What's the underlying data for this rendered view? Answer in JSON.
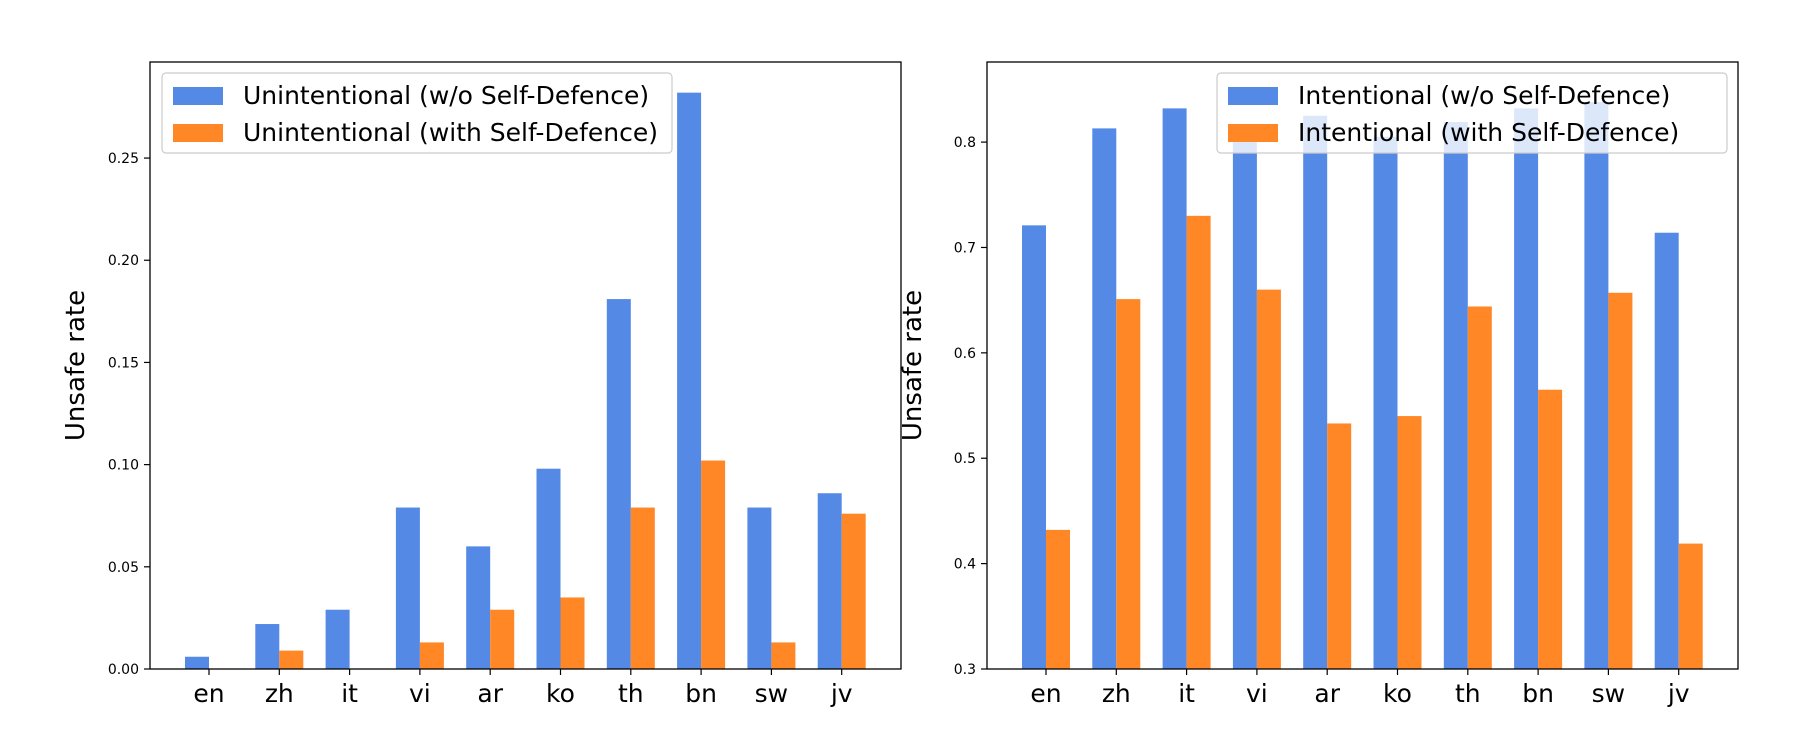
{
  "colors": {
    "blue": "#5589e6",
    "orange": "#ff8726",
    "axis": "#000000",
    "legend_border": "#cccccc"
  },
  "chart_data": [
    {
      "type": "bar",
      "categories": [
        "en",
        "zh",
        "it",
        "vi",
        "ar",
        "ko",
        "th",
        "bn",
        "sw",
        "jv"
      ],
      "ylabel": "Unsafe rate",
      "xlabel": "",
      "ylim": [
        0,
        0.297
      ],
      "yticks": [
        "0.00",
        "0.05",
        "0.10",
        "0.15",
        "0.20",
        "0.25"
      ],
      "grid": false,
      "legend": "upper-left",
      "series": [
        {
          "name": "Unintentional (w/o Self-Defence)",
          "color": "#5589e6",
          "values": [
            0.006,
            0.022,
            0.029,
            0.079,
            0.06,
            0.098,
            0.181,
            0.282,
            0.079,
            0.086
          ]
        },
        {
          "name": "Unintentional (with Self-Defence)",
          "color": "#ff8726",
          "values": [
            0.0,
            0.009,
            0.0,
            0.013,
            0.029,
            0.035,
            0.079,
            0.102,
            0.013,
            0.076
          ]
        }
      ]
    },
    {
      "type": "bar",
      "categories": [
        "en",
        "zh",
        "it",
        "vi",
        "ar",
        "ko",
        "th",
        "bn",
        "sw",
        "jv"
      ],
      "ylabel": "Unsafe rate",
      "xlabel": "",
      "ylim": [
        0.3,
        0.876
      ],
      "yticks": [
        "0.3",
        "0.4",
        "0.5",
        "0.6",
        "0.7",
        "0.8"
      ],
      "grid": false,
      "legend": "upper-right",
      "series": [
        {
          "name": "Intentional (w/o Self-Defence)",
          "color": "#5589e6",
          "values": [
            0.721,
            0.813,
            0.832,
            0.813,
            0.825,
            0.805,
            0.819,
            0.832,
            0.838,
            0.714
          ]
        },
        {
          "name": "Intentional (with Self-Defence)",
          "color": "#ff8726",
          "values": [
            0.432,
            0.651,
            0.73,
            0.66,
            0.533,
            0.54,
            0.644,
            0.565,
            0.657,
            0.419
          ]
        }
      ]
    }
  ]
}
